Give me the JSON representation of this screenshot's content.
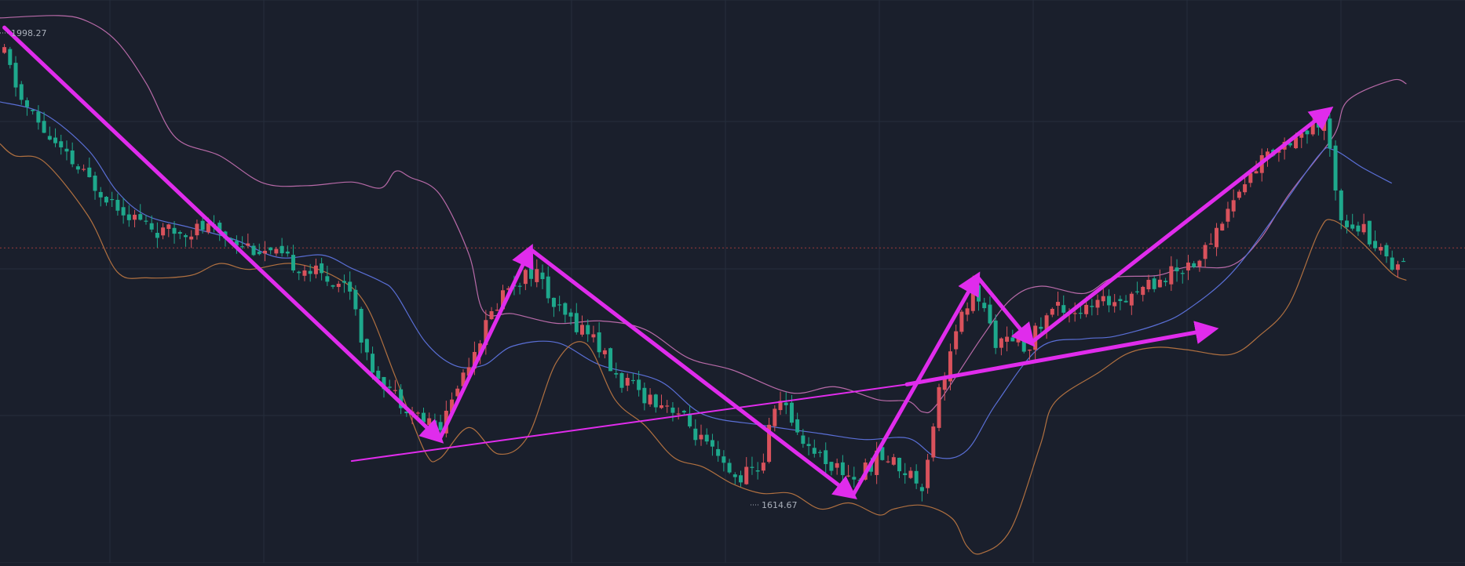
{
  "chart_data": {
    "type": "candlestick",
    "price_labels": {
      "high": "1998.27",
      "low": "1614.67"
    },
    "y_range": [
      1560,
      2030
    ],
    "reference_price": 1823,
    "x_range": [
      0,
      100
    ],
    "colors": {
      "background": "#1a1f2c",
      "grid": "#252d3c",
      "up_candle": "#d9525c",
      "down_candle": "#1ea88c",
      "bollinger_upper": "#b86aa8",
      "bollinger_middle": "#5a6fd6",
      "bollinger_lower": "#b07040",
      "annotation_arrows": "#e02cec",
      "reference_line": "#9a3b3b",
      "price_label_text": "#aab0bb"
    },
    "bollinger": {
      "upper": [
        [
          0,
          2015
        ],
        [
          4,
          2017
        ],
        [
          6,
          2012
        ],
        [
          8,
          1995
        ],
        [
          10,
          1960
        ],
        [
          12,
          1915
        ],
        [
          15,
          1900
        ],
        [
          18,
          1877
        ],
        [
          21,
          1875
        ],
        [
          24,
          1878
        ],
        [
          26,
          1873
        ],
        [
          27,
          1887
        ],
        [
          28,
          1882
        ],
        [
          30,
          1868
        ],
        [
          32,
          1818
        ],
        [
          33,
          1770
        ],
        [
          35,
          1768
        ],
        [
          38,
          1760
        ],
        [
          41,
          1762
        ],
        [
          44,
          1755
        ],
        [
          47,
          1731
        ],
        [
          50,
          1721
        ],
        [
          54,
          1702
        ],
        [
          57,
          1707
        ],
        [
          60,
          1696
        ],
        [
          62,
          1695
        ],
        [
          63,
          1686
        ],
        [
          64,
          1693
        ],
        [
          67,
          1748
        ],
        [
          69,
          1780
        ],
        [
          71,
          1791
        ],
        [
          74,
          1785
        ],
        [
          76,
          1798
        ],
        [
          79,
          1800
        ],
        [
          81,
          1807
        ],
        [
          84,
          1808
        ],
        [
          86,
          1830
        ],
        [
          88,
          1868
        ],
        [
          91,
          1916
        ],
        [
          92,
          1946
        ],
        [
          95,
          1963
        ],
        [
          96,
          1960
        ]
      ],
      "middle": [
        [
          0,
          1945
        ],
        [
          3,
          1935
        ],
        [
          6,
          1905
        ],
        [
          8,
          1870
        ],
        [
          10,
          1850
        ],
        [
          13,
          1840
        ],
        [
          16,
          1830
        ],
        [
          19,
          1815
        ],
        [
          22,
          1817
        ],
        [
          24,
          1806
        ],
        [
          26,
          1795
        ],
        [
          27,
          1785
        ],
        [
          29,
          1745
        ],
        [
          31,
          1725
        ],
        [
          33,
          1725
        ],
        [
          35,
          1741
        ],
        [
          38,
          1744
        ],
        [
          41,
          1725
        ],
        [
          45,
          1712
        ],
        [
          48,
          1684
        ],
        [
          52,
          1675
        ],
        [
          56,
          1668
        ],
        [
          59,
          1663
        ],
        [
          62,
          1664
        ],
        [
          64,
          1648
        ],
        [
          66,
          1654
        ],
        [
          68,
          1693
        ],
        [
          71,
          1740
        ],
        [
          74,
          1747
        ],
        [
          76,
          1749
        ],
        [
          79,
          1759
        ],
        [
          81,
          1771
        ],
        [
          84,
          1801
        ],
        [
          87,
          1849
        ],
        [
          90,
          1900
        ],
        [
          91,
          1905
        ],
        [
          93,
          1890
        ],
        [
          95,
          1877
        ]
      ],
      "lower": [
        [
          0,
          1910
        ],
        [
          1,
          1900
        ],
        [
          3,
          1895
        ],
        [
          6,
          1850
        ],
        [
          8,
          1803
        ],
        [
          10,
          1798
        ],
        [
          13,
          1800
        ],
        [
          15,
          1810
        ],
        [
          17,
          1805
        ],
        [
          20,
          1810
        ],
        [
          23,
          1798
        ],
        [
          25,
          1775
        ],
        [
          27,
          1715
        ],
        [
          29,
          1653
        ],
        [
          30,
          1647
        ],
        [
          32,
          1673
        ],
        [
          34,
          1651
        ],
        [
          36,
          1665
        ],
        [
          38,
          1728
        ],
        [
          40,
          1743
        ],
        [
          42,
          1696
        ],
        [
          44,
          1675
        ],
        [
          46,
          1648
        ],
        [
          48,
          1640
        ],
        [
          50,
          1626
        ],
        [
          52,
          1618
        ],
        [
          54,
          1618
        ],
        [
          56,
          1605
        ],
        [
          58,
          1610
        ],
        [
          60,
          1600
        ],
        [
          61,
          1605
        ],
        [
          63,
          1608
        ],
        [
          65,
          1597
        ],
        [
          66,
          1574
        ],
        [
          67,
          1568
        ],
        [
          69,
          1588
        ],
        [
          71,
          1658
        ],
        [
          72,
          1694
        ],
        [
          75,
          1719
        ],
        [
          77,
          1735
        ],
        [
          79,
          1740
        ],
        [
          81,
          1738
        ],
        [
          84,
          1734
        ],
        [
          86,
          1750
        ],
        [
          88,
          1776
        ],
        [
          90,
          1836
        ],
        [
          91,
          1846
        ],
        [
          93,
          1827
        ],
        [
          95,
          1802
        ],
        [
          96,
          1796
        ]
      ]
    },
    "annotations": [
      {
        "type": "arrow",
        "from": [
          0.3,
          2007
        ],
        "to": [
          30.0,
          1663
        ],
        "thickness": "thick"
      },
      {
        "type": "arrow",
        "from": [
          30.0,
          1663
        ],
        "to": [
          36.2,
          1822
        ],
        "thickness": "thick"
      },
      {
        "type": "arrow",
        "from": [
          36.2,
          1822
        ],
        "to": [
          58.2,
          1616
        ],
        "thickness": "thick"
      },
      {
        "type": "arrow",
        "from": [
          58.2,
          1616
        ],
        "to": [
          66.7,
          1799
        ],
        "thickness": "thick"
      },
      {
        "type": "arrow",
        "from": [
          66.7,
          1799
        ],
        "to": [
          70.4,
          1744
        ],
        "thickness": "thick"
      },
      {
        "type": "arrow",
        "from": [
          70.4,
          1744
        ],
        "to": [
          90.7,
          1938
        ],
        "thickness": "thick"
      },
      {
        "type": "arrow",
        "from": [
          61.9,
          1709
        ],
        "to": [
          82.8,
          1755
        ],
        "thickness": "thick"
      },
      {
        "type": "line",
        "from": [
          24.0,
          1645
        ],
        "to": [
          61.9,
          1709
        ],
        "thickness": "thin"
      }
    ]
  }
}
